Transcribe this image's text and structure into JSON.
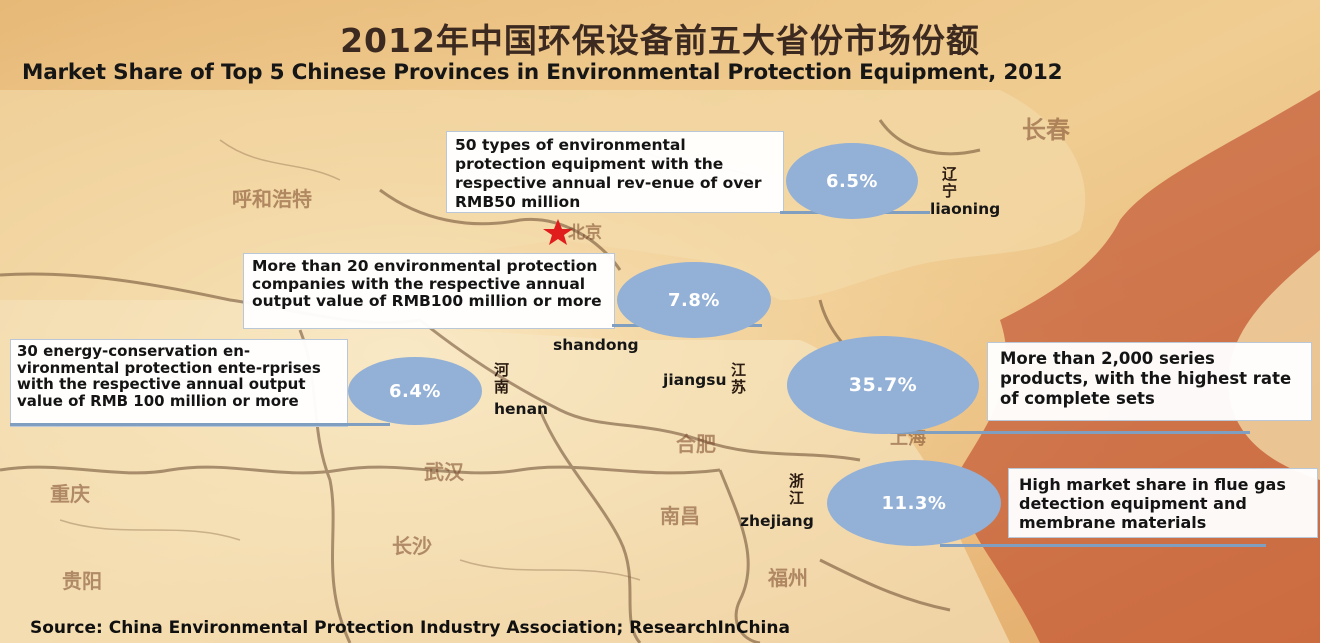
{
  "title_cn": "2012年中国环保设备前五大省份市场份额",
  "title_en": "Market Share of Top 5 Chinese Provinces in Environmental Protection Equipment, 2012",
  "map": {
    "background": "#e9c184",
    "land_color": "#f6e6bf",
    "sea_color": "#b02a1a",
    "border_color": "#6a4a30",
    "capital_star_color": "#e01c1c",
    "city_labels": [
      "长春",
      "呼和浩特",
      "北京",
      "上海",
      "合肥",
      "武汉",
      "重庆",
      "长沙",
      "南昌",
      "福州",
      "贵阳"
    ]
  },
  "provinces": [
    {
      "en": "liaoning",
      "cn": [
        "辽",
        "宁"
      ],
      "share": "6.5%",
      "value": 6.5,
      "note": "50 types of environmental protection equipment with the respective annual rev-enue of over RMB50 million"
    },
    {
      "en": "shandong",
      "cn": [],
      "share": "7.8%",
      "value": 7.8,
      "note": "More than 20 environmental protection companies with the respective annual output value of RMB100 million or more"
    },
    {
      "en": "henan",
      "cn": [
        "河",
        "南"
      ],
      "share": "6.4%",
      "value": 6.4,
      "note": "30 energy-conservation en-vironmental protection ente-rprises with the respective annual output value of RMB 100 million or more"
    },
    {
      "en": "jiangsu",
      "cn": [
        "江",
        "苏"
      ],
      "share": "35.7%",
      "value": 35.7,
      "note": "More than 2,000 series products, with the highest rate of complete sets"
    },
    {
      "en": "zhejiang",
      "cn": [
        "浙",
        "江"
      ],
      "share": "11.3%",
      "value": 11.3,
      "note": "High market share in flue gas detection equipment and membrane materials"
    }
  ],
  "source": "Source: China Environmental Protection Industry Association; ResearchInChina"
}
